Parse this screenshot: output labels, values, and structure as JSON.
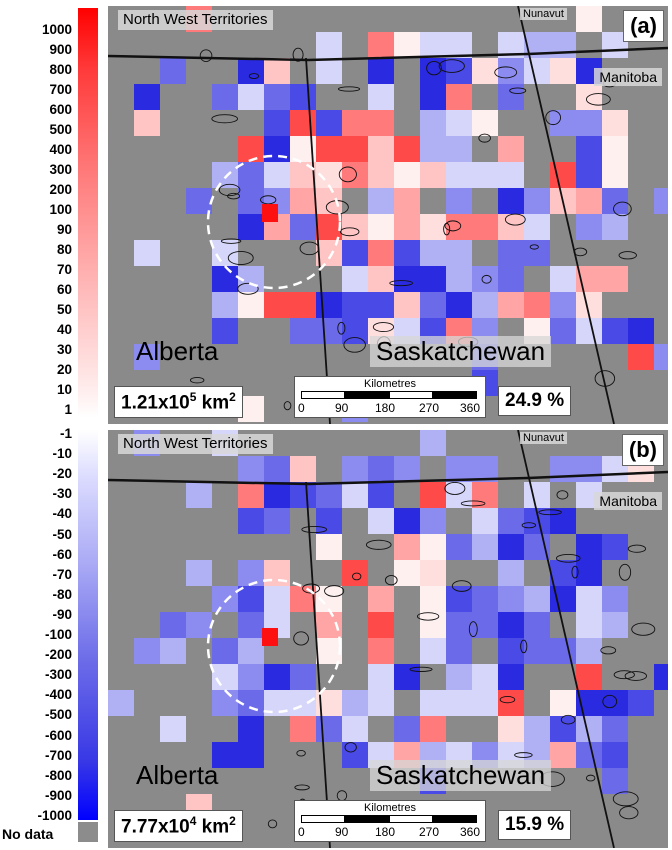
{
  "legend": {
    "positive_ticks": [
      "1000",
      "900",
      "800",
      "700",
      "600",
      "500",
      "400",
      "300",
      "200",
      "100",
      "90",
      "80",
      "70",
      "60",
      "50",
      "40",
      "30",
      "20",
      "10",
      "1"
    ],
    "negative_ticks": [
      "-1",
      "-10",
      "-20",
      "-30",
      "-40",
      "-50",
      "-60",
      "-70",
      "-80",
      "-90",
      "-100",
      "-200",
      "-300",
      "-400",
      "-500",
      "-600",
      "-700",
      "-800",
      "-900",
      "-1000"
    ],
    "no_data_label": "No data",
    "colors": {
      "max_positive": "#ff0000",
      "zero": "#ffffff",
      "max_negative": "#0000ff",
      "no_data": "#8c8c8c"
    }
  },
  "panels": [
    {
      "tag": "(a)",
      "nwt": "North West Territories",
      "nunavut": "Nunavut",
      "manitoba": "Manitoba",
      "alberta": "Alberta",
      "saskatchewan": "Saskatchewan",
      "area": "1.21x10",
      "area_exp": "5",
      "area_unit": " km",
      "area_unit_exp": "2",
      "percent": "24.9 %",
      "scale_title": "Kilometres",
      "scale_labels": [
        "0",
        "90",
        "180",
        "270",
        "360"
      ]
    },
    {
      "tag": "(b)",
      "nwt": "North West Territories",
      "nunavut": "Nunavut",
      "manitoba": "Manitoba",
      "alberta": "Alberta",
      "saskatchewan": "Saskatchewan",
      "area": "7.77x10",
      "area_exp": "4",
      "area_unit": " km",
      "area_unit_exp": "2",
      "percent": "15.9 %",
      "scale_title": "Kilometres",
      "scale_labels": [
        "0",
        "90",
        "180",
        "270",
        "360"
      ]
    }
  ]
}
